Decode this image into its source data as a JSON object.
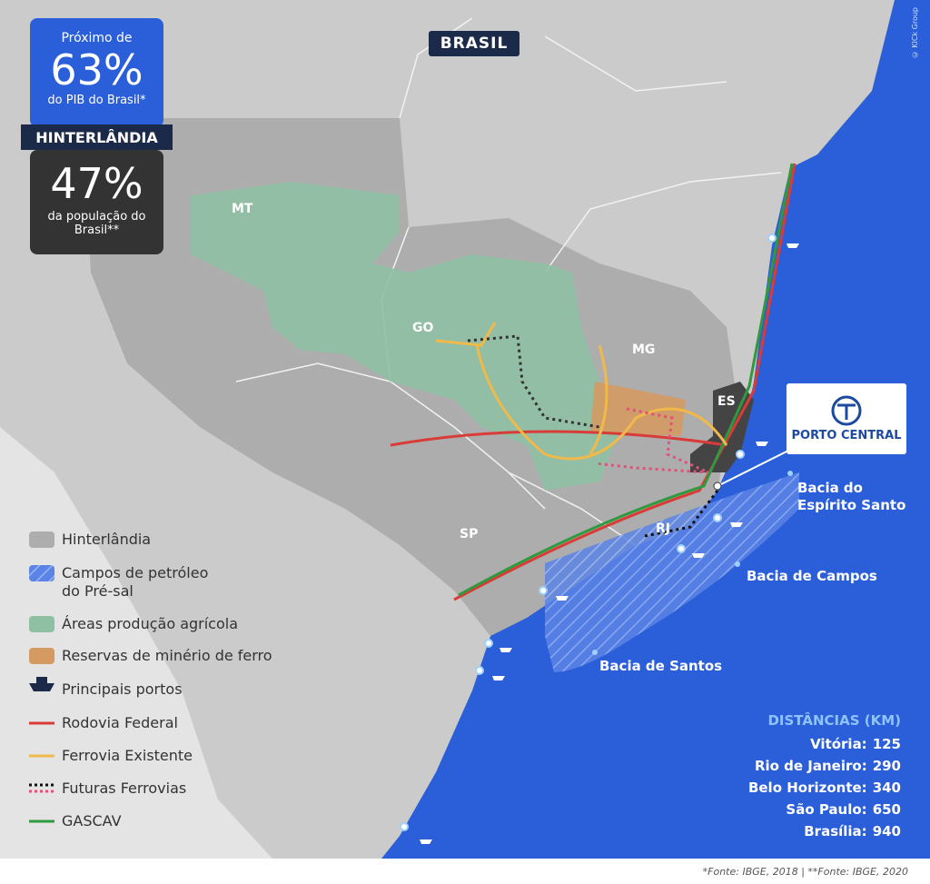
{
  "map_title": "BRASIL",
  "stats": {
    "gdp_prefix": "Próximo de",
    "gdp_value": "63%",
    "gdp_caption": "do PIB do Brasil*",
    "header": "HINTERLÂNDIA",
    "pop_value": "47%",
    "pop_caption": "da população do Brasil**"
  },
  "regions": [
    "MT",
    "GO",
    "MG",
    "ES",
    "SP",
    "RJ"
  ],
  "port": "PORTO CENTRAL",
  "basins": [
    "Bacia do Espírito Santo",
    "Bacia de Campos",
    "Bacia de Santos"
  ],
  "legend": [
    "Hinterlândia",
    "Campos de petróleo do Pré-sal",
    "Áreas produção agrícola",
    "Reservas de minério de ferro",
    "Principais portos",
    "Rodovia Federal",
    "Ferrovia Existente",
    "Futuras Ferrovias",
    "GASCAV"
  ],
  "distances": {
    "title": "DISTÂNCIAS (KM)",
    "rows": [
      {
        "city": "Vitória:",
        "km": 125
      },
      {
        "city": "Rio de Janeiro:",
        "km": 290
      },
      {
        "city": "Belo Horizonte:",
        "km": 340
      },
      {
        "city": "São Paulo:",
        "km": 650
      },
      {
        "city": "Brasília:",
        "km": 940
      }
    ]
  },
  "credit": "© KICk Group",
  "sources": [
    "*Fonte: IBGE, 2018",
    "**Fonte: IBGE, 2020"
  ]
}
